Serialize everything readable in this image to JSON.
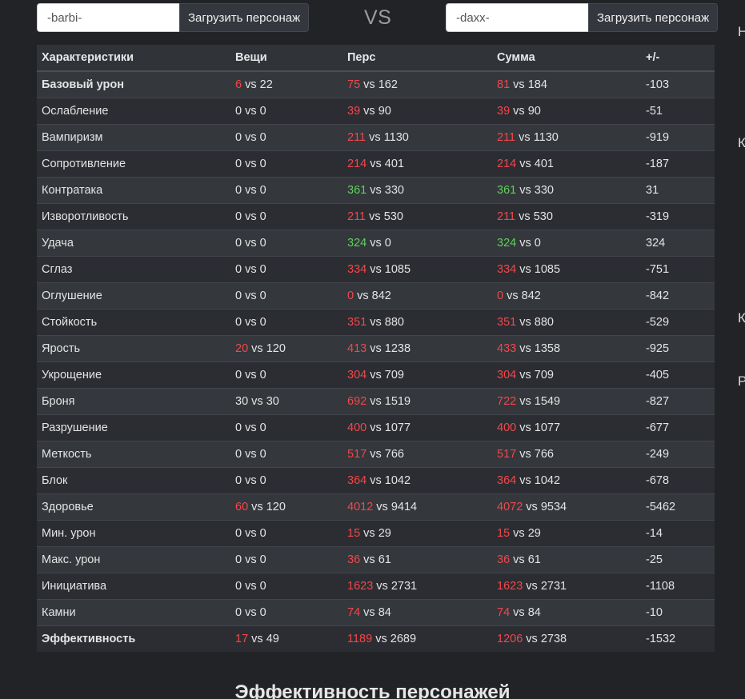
{
  "search_left": {
    "value": "-barbi-",
    "button": "Загрузить персонаж"
  },
  "vs": "VS",
  "search_right": {
    "value": "-daxx-",
    "button": "Загрузить персонаж"
  },
  "edge_letters": [
    "Н",
    "К",
    "К",
    "Р"
  ],
  "table": {
    "headers": [
      "Характеристики",
      "Вещи",
      "Перс",
      "Сумма",
      "+/-"
    ],
    "rows": [
      {
        "name": "Базовый урон",
        "items": [
          "6",
          "22"
        ],
        "pers": [
          "75",
          "162"
        ],
        "sum": [
          "81",
          "184"
        ],
        "diff": "-103"
      },
      {
        "name": "Ослабление",
        "items": [
          "0",
          "0"
        ],
        "pers": [
          "39",
          "90"
        ],
        "sum": [
          "39",
          "90"
        ],
        "diff": "-51"
      },
      {
        "name": "Вампиризм",
        "items": [
          "0",
          "0"
        ],
        "pers": [
          "211",
          "1130"
        ],
        "sum": [
          "211",
          "1130"
        ],
        "diff": "-919"
      },
      {
        "name": "Сопротивление",
        "items": [
          "0",
          "0"
        ],
        "pers": [
          "214",
          "401"
        ],
        "sum": [
          "214",
          "401"
        ],
        "diff": "-187"
      },
      {
        "name": "Контратака",
        "items": [
          "0",
          "0"
        ],
        "pers": [
          "361",
          "330"
        ],
        "sum": [
          "361",
          "330"
        ],
        "diff": "31"
      },
      {
        "name": "Изворотливость",
        "items": [
          "0",
          "0"
        ],
        "pers": [
          "211",
          "530"
        ],
        "sum": [
          "211",
          "530"
        ],
        "diff": "-319"
      },
      {
        "name": "Удача",
        "items": [
          "0",
          "0"
        ],
        "pers": [
          "324",
          "0"
        ],
        "sum": [
          "324",
          "0"
        ],
        "diff": "324"
      },
      {
        "name": "Сглаз",
        "items": [
          "0",
          "0"
        ],
        "pers": [
          "334",
          "1085"
        ],
        "sum": [
          "334",
          "1085"
        ],
        "diff": "-751"
      },
      {
        "name": "Оглушение",
        "items": [
          "0",
          "0"
        ],
        "pers": [
          "0",
          "842"
        ],
        "sum": [
          "0",
          "842"
        ],
        "diff": "-842"
      },
      {
        "name": "Стойкость",
        "items": [
          "0",
          "0"
        ],
        "pers": [
          "351",
          "880"
        ],
        "sum": [
          "351",
          "880"
        ],
        "diff": "-529"
      },
      {
        "name": "Ярость",
        "items": [
          "20",
          "120"
        ],
        "pers": [
          "413",
          "1238"
        ],
        "sum": [
          "433",
          "1358"
        ],
        "diff": "-925"
      },
      {
        "name": "Укрощение",
        "items": [
          "0",
          "0"
        ],
        "pers": [
          "304",
          "709"
        ],
        "sum": [
          "304",
          "709"
        ],
        "diff": "-405"
      },
      {
        "name": "Броня",
        "items": [
          "30",
          "30"
        ],
        "pers": [
          "692",
          "1519"
        ],
        "sum": [
          "722",
          "1549"
        ],
        "diff": "-827"
      },
      {
        "name": "Разрушение",
        "items": [
          "0",
          "0"
        ],
        "pers": [
          "400",
          "1077"
        ],
        "sum": [
          "400",
          "1077"
        ],
        "diff": "-677"
      },
      {
        "name": "Меткость",
        "items": [
          "0",
          "0"
        ],
        "pers": [
          "517",
          "766"
        ],
        "sum": [
          "517",
          "766"
        ],
        "diff": "-249"
      },
      {
        "name": "Блок",
        "items": [
          "0",
          "0"
        ],
        "pers": [
          "364",
          "1042"
        ],
        "sum": [
          "364",
          "1042"
        ],
        "diff": "-678"
      },
      {
        "name": "Здоровье",
        "items": [
          "60",
          "120"
        ],
        "pers": [
          "4012",
          "9414"
        ],
        "sum": [
          "4072",
          "9534"
        ],
        "diff": "-5462"
      },
      {
        "name": "Мин. урон",
        "items": [
          "0",
          "0"
        ],
        "pers": [
          "15",
          "29"
        ],
        "sum": [
          "15",
          "29"
        ],
        "diff": "-14"
      },
      {
        "name": "Макс. урон",
        "items": [
          "0",
          "0"
        ],
        "pers": [
          "36",
          "61"
        ],
        "sum": [
          "36",
          "61"
        ],
        "diff": "-25"
      },
      {
        "name": "Инициатива",
        "items": [
          "0",
          "0"
        ],
        "pers": [
          "1623",
          "2731"
        ],
        "sum": [
          "1623",
          "2731"
        ],
        "diff": "-1108"
      },
      {
        "name": "Камни",
        "items": [
          "0",
          "0"
        ],
        "pers": [
          "74",
          "84"
        ],
        "sum": [
          "74",
          "84"
        ],
        "diff": "-10"
      },
      {
        "name": "Эффективность",
        "items": [
          "17",
          "49"
        ],
        "pers": [
          "1189",
          "2689"
        ],
        "sum": [
          "1206",
          "2738"
        ],
        "diff": "-1532"
      }
    ]
  },
  "section_title": "Эффективность персонажей",
  "colors": {
    "negative": "#f0484b",
    "positive": "#5fd15a",
    "highlight": "#f7941d"
  }
}
